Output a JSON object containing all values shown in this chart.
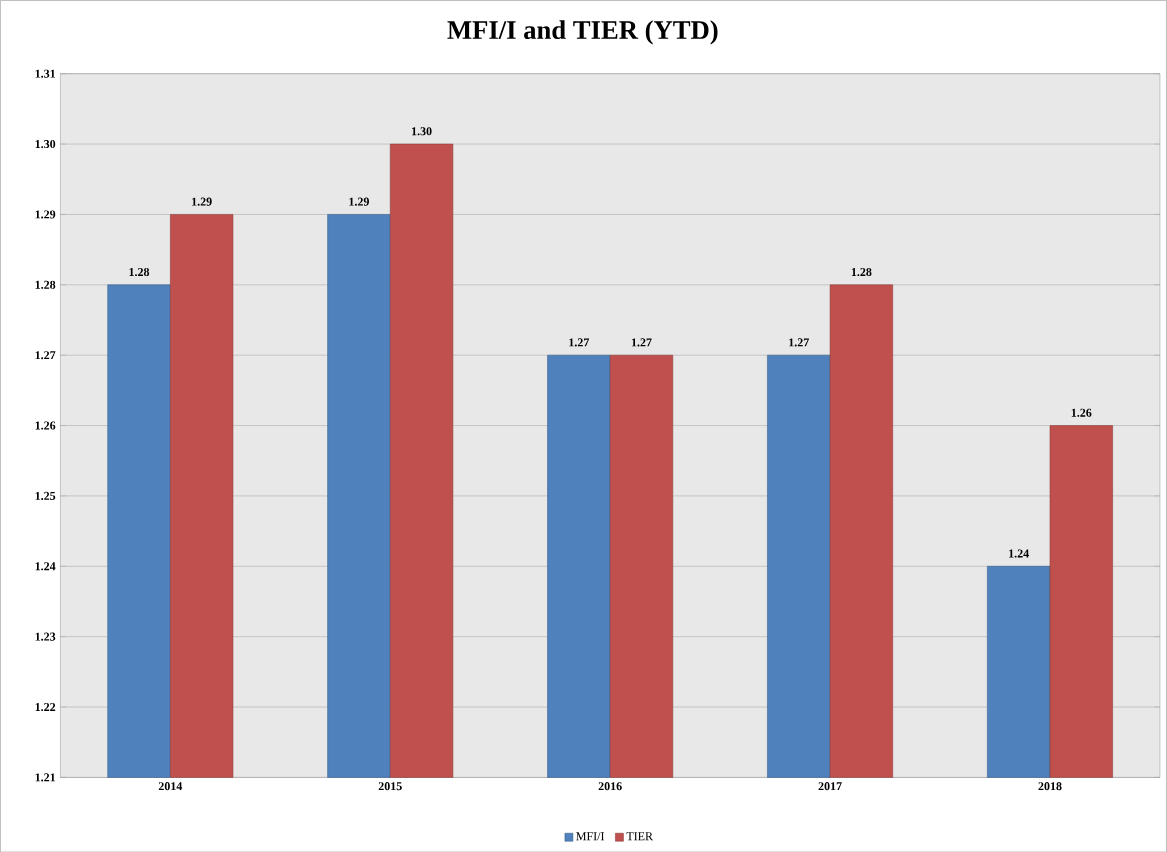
{
  "chart_data": {
    "type": "bar",
    "title": "MFI/I and TIER (YTD)",
    "categories": [
      "2014",
      "2015",
      "2016",
      "2017",
      "2018"
    ],
    "series": [
      {
        "name": "MFI/I",
        "color": "#4f81bd",
        "values": [
          1.28,
          1.29,
          1.27,
          1.27,
          1.24
        ],
        "value_labels": [
          "1.28",
          "1.29",
          "1.27",
          "1.27",
          "1.24"
        ]
      },
      {
        "name": "TIER",
        "color": "#c0504d",
        "values": [
          1.29,
          1.3,
          1.27,
          1.28,
          1.26
        ],
        "value_labels": [
          "1.29",
          "1.30",
          "1.27",
          "1.28",
          "1.26"
        ]
      }
    ],
    "ylim": [
      1.21,
      1.31
    ],
    "yticks": [
      1.21,
      1.22,
      1.23,
      1.24,
      1.25,
      1.26,
      1.27,
      1.28,
      1.29,
      {
        "value": 1.3,
        "label": "1.30"
      },
      1.31
    ],
    "grid": "y",
    "legend": "bottom"
  }
}
